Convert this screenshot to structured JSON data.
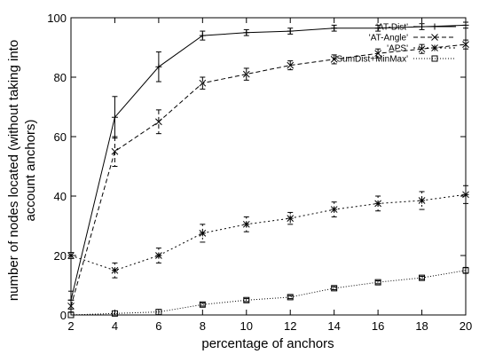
{
  "chart_data": {
    "type": "line",
    "title": "",
    "xlabel": "percentage of anchors",
    "ylabel_lines": [
      "number of nodes located (without taking into",
      "account anchors)"
    ],
    "xlim": [
      2,
      20
    ],
    "ylim": [
      0,
      100
    ],
    "x_ticks": [
      2,
      4,
      6,
      8,
      10,
      12,
      14,
      16,
      18,
      20
    ],
    "y_ticks": [
      0,
      20,
      40,
      60,
      80,
      100
    ],
    "grid": false,
    "legend_position": "top-right",
    "x": [
      2,
      4,
      6,
      8,
      10,
      12,
      14,
      16,
      18,
      20
    ],
    "series": [
      {
        "name": "'AT-Dist'",
        "marker": "plus",
        "dash": "",
        "values": [
          5,
          66.5,
          83.5,
          94,
          95,
          95.5,
          96.5,
          96.5,
          97,
          97.5
        ],
        "errors": [
          3,
          7,
          5,
          1.5,
          1,
          1,
          1,
          1,
          1,
          1
        ]
      },
      {
        "name": "'AT-Angle'",
        "marker": "x",
        "dash": "5,3",
        "values": [
          3,
          55,
          65,
          78,
          81,
          84,
          86,
          88,
          89.5,
          91
        ],
        "errors": [
          2,
          5,
          4,
          2,
          2,
          1.5,
          1.5,
          1.5,
          1.5,
          1.5
        ]
      },
      {
        "name": "'APS'",
        "marker": "star",
        "dash": "2,3",
        "values": [
          20,
          15,
          20,
          27.5,
          30.5,
          32.5,
          35.5,
          37.5,
          38.5,
          40.5
        ],
        "errors": [
          1,
          2.5,
          2.5,
          3,
          2.5,
          2,
          2.5,
          2.5,
          3,
          3
        ]
      },
      {
        "name": "'SumDist+MinMax'",
        "marker": "square",
        "dash": "1,2",
        "values": [
          0,
          0.5,
          1,
          3.5,
          5,
          6,
          9,
          11,
          12.5,
          15
        ],
        "errors": [
          0,
          0,
          0,
          0.5,
          0.5,
          0.5,
          0.5,
          0.5,
          0.5,
          1
        ]
      }
    ]
  }
}
